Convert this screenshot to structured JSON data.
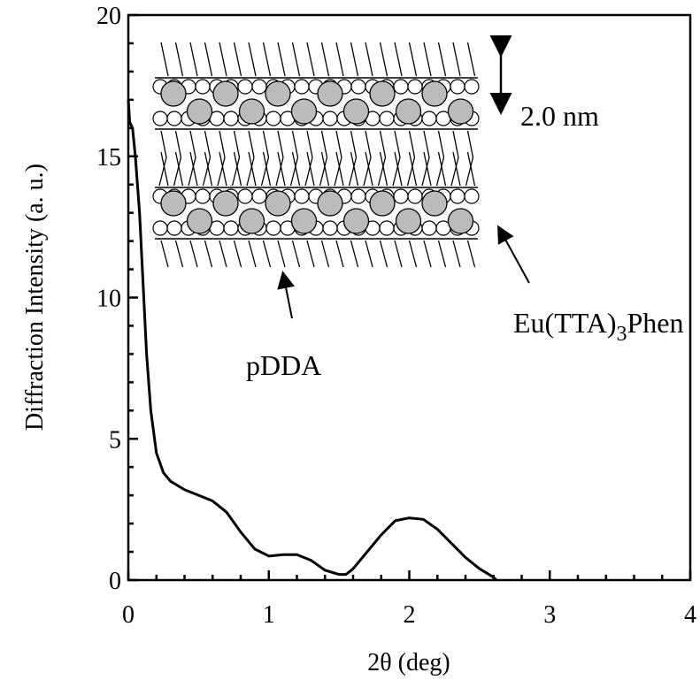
{
  "chart_data": {
    "type": "line",
    "xlabel": "2θ (deg)",
    "ylabel": "Diffraction Intensity (a. u.)",
    "x": [
      0,
      0.01,
      0.03,
      0.05,
      0.08,
      0.1,
      0.13,
      0.16,
      0.2,
      0.25,
      0.3,
      0.4,
      0.5,
      0.6,
      0.7,
      0.8,
      0.9,
      1.0,
      1.1,
      1.2,
      1.3,
      1.4,
      1.5,
      1.55,
      1.6,
      1.7,
      1.8,
      1.9,
      2.0,
      2.1,
      2.2,
      2.3,
      2.4,
      2.5,
      2.6,
      2.62
    ],
    "series": [
      {
        "color": "#000000",
        "values": [
          17,
          16.2,
          16,
          15,
          13,
          11,
          8,
          6,
          4.5,
          3.8,
          3.5,
          3.2,
          3.0,
          2.8,
          2.4,
          1.7,
          1.1,
          0.85,
          0.9,
          0.9,
          0.7,
          0.35,
          0.2,
          0.2,
          0.4,
          1.0,
          1.6,
          2.1,
          2.2,
          2.15,
          1.8,
          1.3,
          0.8,
          0.4,
          0.1,
          0
        ]
      }
    ],
    "xlim": [
      0,
      4
    ],
    "xticks": [
      0,
      1,
      2,
      3,
      4
    ],
    "xminorticks": [
      0.2,
      0.4,
      0.6,
      0.8,
      1.2,
      1.4,
      1.6,
      1.8,
      2.2,
      2.4,
      2.6,
      2.8,
      3.2,
      3.4,
      3.6,
      3.8
    ],
    "ylim": [
      0,
      20
    ],
    "yticks": [
      0,
      5,
      10,
      15,
      20
    ],
    "yminorticks": [
      1,
      2,
      3,
      4,
      6,
      7,
      8,
      9,
      11,
      12,
      13,
      14,
      16,
      17,
      18,
      19
    ],
    "annotations": [
      {
        "text": "2.0 nm"
      },
      {
        "text_parts": [
          "Eu(TTA)",
          "3",
          "Phen"
        ]
      },
      {
        "text": "pDDA"
      }
    ]
  }
}
